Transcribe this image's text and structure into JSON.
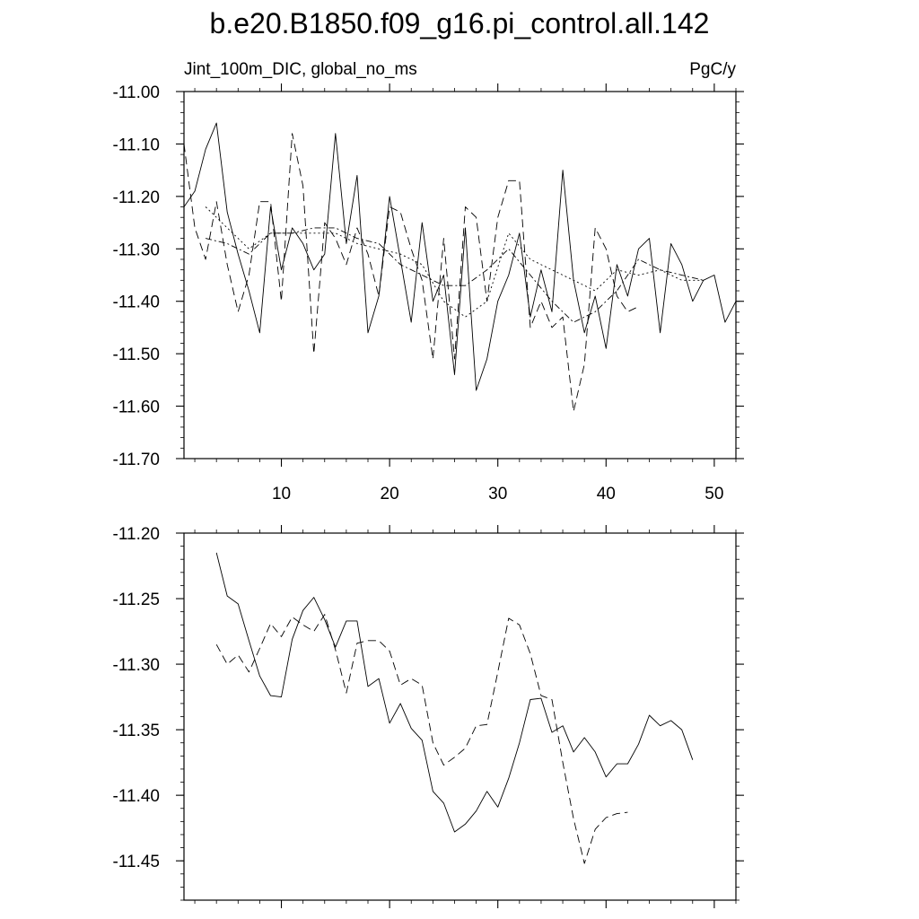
{
  "title": "b.e20.B1850.f09_g16.pi_control.all.142",
  "subtitle_left": "Jint_100m_DIC, global_no_ms",
  "subtitle_right": "PgC/y",
  "chart_data": [
    {
      "type": "line",
      "xlim": [
        1,
        52
      ],
      "ylim": [
        -11.7,
        -11.0
      ],
      "x_ticks": [
        10,
        20,
        30,
        40,
        50
      ],
      "y_ticks": [
        -11.0,
        -11.1,
        -11.2,
        -11.3,
        -11.4,
        -11.5,
        -11.6,
        -11.7
      ],
      "y_tick_labels": [
        "-11.00",
        "-11.10",
        "-11.20",
        "-11.30",
        "-11.40",
        "-11.50",
        "-11.60",
        "-11.70"
      ],
      "series": [
        {
          "style": "solid",
          "x": [
            1,
            2,
            3,
            4,
            5,
            6,
            7,
            8,
            9,
            10,
            11,
            12,
            13,
            14,
            15,
            16,
            17,
            18,
            19,
            20,
            21,
            22,
            23,
            24,
            25,
            26,
            27,
            28,
            29,
            30,
            31,
            32,
            33,
            34,
            35,
            36,
            37,
            38,
            39,
            40,
            41,
            42,
            43,
            44,
            45,
            46,
            47,
            48,
            49,
            50,
            51,
            52
          ],
          "y": [
            -11.22,
            -11.19,
            -11.11,
            -11.06,
            -11.23,
            -11.31,
            -11.38,
            -11.46,
            -11.22,
            -11.34,
            -11.26,
            -11.29,
            -11.34,
            -11.31,
            -11.08,
            -11.29,
            -11.16,
            -11.46,
            -11.39,
            -11.2,
            -11.32,
            -11.44,
            -11.25,
            -11.4,
            -11.35,
            -11.54,
            -11.26,
            -11.57,
            -11.51,
            -11.4,
            -11.35,
            -11.27,
            -11.43,
            -11.34,
            -11.42,
            -11.15,
            -11.36,
            -11.46,
            -11.39,
            -11.49,
            -11.33,
            -11.39,
            -11.3,
            -11.28,
            -11.46,
            -11.29,
            -11.33,
            -11.4,
            -11.36,
            -11.35,
            -11.44,
            -11.4
          ]
        },
        {
          "style": "dash",
          "x": [
            1,
            2,
            3,
            4,
            5,
            6,
            7,
            8,
            9,
            10,
            11,
            12,
            13,
            14,
            15,
            16,
            17,
            18,
            19,
            20,
            21,
            22,
            23,
            24,
            25,
            26,
            27,
            28,
            29,
            30,
            31,
            32,
            33,
            34,
            35,
            36,
            37,
            38,
            39,
            40,
            41,
            42,
            43
          ],
          "y": [
            -11.1,
            -11.26,
            -11.32,
            -11.21,
            -11.33,
            -11.42,
            -11.35,
            -11.21,
            -11.21,
            -11.4,
            -11.08,
            -11.18,
            -11.5,
            -11.25,
            -11.28,
            -11.33,
            -11.26,
            -11.31,
            -11.39,
            -11.22,
            -11.23,
            -11.3,
            -11.36,
            -11.51,
            -11.28,
            -11.51,
            -11.22,
            -11.24,
            -11.4,
            -11.24,
            -11.17,
            -11.17,
            -11.45,
            -11.4,
            -11.45,
            -11.43,
            -11.61,
            -11.52,
            -11.26,
            -11.3,
            -11.39,
            -11.42,
            -11.41
          ]
        },
        {
          "style": "dashdot",
          "x": [
            3,
            5,
            7,
            9,
            11,
            13,
            15,
            17,
            19,
            21,
            23,
            25,
            27,
            29,
            31,
            33,
            35,
            37,
            39,
            41,
            43,
            45,
            47,
            49
          ],
          "y": [
            -11.28,
            -11.29,
            -11.31,
            -11.27,
            -11.27,
            -11.26,
            -11.26,
            -11.28,
            -11.29,
            -11.33,
            -11.35,
            -11.37,
            -11.37,
            -11.34,
            -11.3,
            -11.35,
            -11.4,
            -11.44,
            -11.42,
            -11.38,
            -11.32,
            -11.34,
            -11.35,
            -11.36
          ]
        },
        {
          "style": "dot",
          "x": [
            3,
            5,
            7,
            9,
            11,
            13,
            15,
            17,
            19,
            21,
            23,
            25,
            27,
            29,
            31,
            33,
            35,
            37,
            39,
            41,
            43,
            45,
            47,
            49
          ],
          "y": [
            -11.22,
            -11.26,
            -11.3,
            -11.27,
            -11.27,
            -11.27,
            -11.27,
            -11.29,
            -11.3,
            -11.31,
            -11.33,
            -11.4,
            -11.43,
            -11.4,
            -11.27,
            -11.32,
            -11.34,
            -11.36,
            -11.38,
            -11.34,
            -11.35,
            -11.34,
            -11.36,
            -11.36
          ]
        }
      ]
    },
    {
      "type": "line",
      "xlim": [
        1,
        52
      ],
      "ylim": [
        -11.48,
        -11.2
      ],
      "x_ticks": [
        10,
        20,
        30,
        40,
        50
      ],
      "y_ticks": [
        -11.2,
        -11.25,
        -11.3,
        -11.35,
        -11.4,
        -11.45
      ],
      "y_tick_labels": [
        "-11.20",
        "-11.25",
        "-11.30",
        "-11.35",
        "-11.40",
        "-11.45"
      ],
      "series": [
        {
          "style": "solid",
          "x": [
            4,
            5,
            6,
            7,
            8,
            9,
            10,
            11,
            12,
            13,
            14,
            15,
            16,
            17,
            18,
            19,
            20,
            21,
            22,
            23,
            24,
            25,
            26,
            27,
            28,
            29,
            30,
            31,
            32,
            33,
            34,
            35,
            36,
            37,
            38,
            39,
            40,
            41,
            42,
            43,
            44,
            45,
            46,
            47,
            48
          ],
          "y": [
            -11.215,
            -11.248,
            -11.254,
            -11.282,
            -11.309,
            -11.324,
            -11.325,
            -11.281,
            -11.259,
            -11.249,
            -11.266,
            -11.287,
            -11.267,
            -11.267,
            -11.317,
            -11.311,
            -11.345,
            -11.33,
            -11.349,
            -11.358,
            -11.397,
            -11.406,
            -11.428,
            -11.422,
            -11.412,
            -11.397,
            -11.409,
            -11.387,
            -11.36,
            -11.327,
            -11.326,
            -11.352,
            -11.347,
            -11.367,
            -11.356,
            -11.367,
            -11.386,
            -11.376,
            -11.376,
            -11.361,
            -11.339,
            -11.347,
            -11.343,
            -11.35,
            -11.373
          ]
        },
        {
          "style": "dash",
          "x": [
            4,
            5,
            6,
            7,
            8,
            9,
            10,
            11,
            12,
            13,
            14,
            15,
            16,
            17,
            18,
            19,
            20,
            21,
            22,
            23,
            24,
            25,
            26,
            27,
            28,
            29,
            30,
            31,
            32,
            33,
            34,
            35,
            36,
            37,
            38,
            39,
            40,
            41,
            42
          ],
          "y": [
            -11.285,
            -11.3,
            -11.293,
            -11.306,
            -11.288,
            -11.269,
            -11.279,
            -11.264,
            -11.27,
            -11.275,
            -11.262,
            -11.289,
            -11.322,
            -11.284,
            -11.282,
            -11.282,
            -11.29,
            -11.316,
            -11.311,
            -11.316,
            -11.36,
            -11.377,
            -11.371,
            -11.364,
            -11.347,
            -11.346,
            -11.306,
            -11.265,
            -11.27,
            -11.292,
            -11.324,
            -11.327,
            -11.375,
            -11.418,
            -11.452,
            -11.426,
            -11.417,
            -11.414,
            -11.413
          ]
        }
      ]
    }
  ]
}
